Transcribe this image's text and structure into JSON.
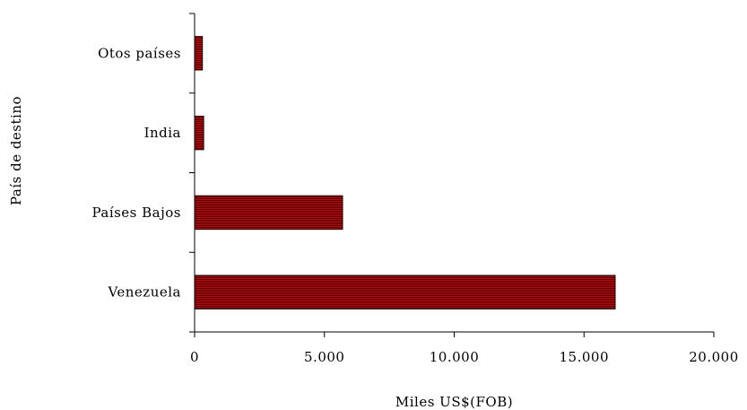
{
  "chart_data": {
    "type": "bar",
    "orientation": "horizontal",
    "categories": [
      "Venezuela",
      "Países Bajos",
      "India",
      "Otos países"
    ],
    "values": [
      16200,
      5700,
      350,
      300
    ],
    "xlabel": "Miles US$(FOB)",
    "ylabel": "País de destino",
    "xlim": [
      0,
      20000
    ],
    "xticks": [
      0,
      5000,
      10000,
      15000,
      20000
    ],
    "xtick_labels": [
      "0",
      "5.000",
      "10.000",
      "15.000",
      "20.000"
    ],
    "grid": false,
    "legend": "none",
    "colors": {
      "bar_fill": "#b01010",
      "bar_stripe": "#5a0000",
      "bar_edge": "#1a0000",
      "axis": "#000000"
    }
  }
}
